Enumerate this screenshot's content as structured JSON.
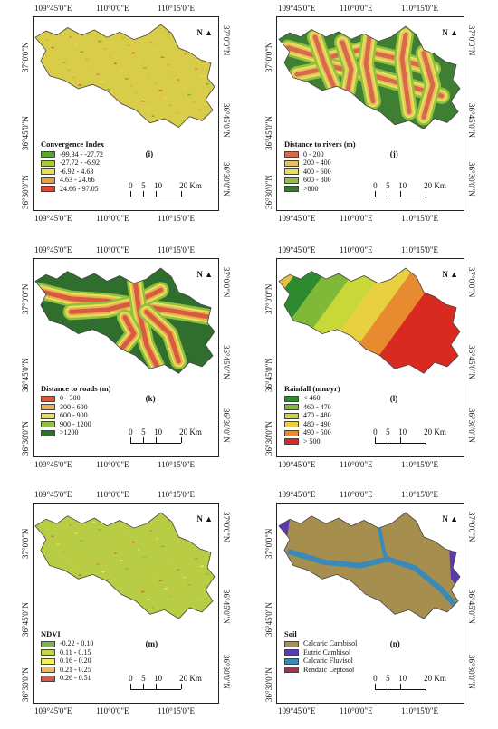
{
  "panels": [
    {
      "id": "i",
      "label": "(i)",
      "lon_ticks_top": [
        "109°45'0\"E",
        "110°0'0\"E",
        "110°15'0\"E"
      ],
      "lon_ticks_bottom": [
        "109°45'0\"E",
        "110°0'0\"E",
        "110°15'0\"E"
      ],
      "lat_ticks": [
        "37°0'0\"N",
        "36°45'0\"N",
        "36°30'0\"N"
      ],
      "legend": {
        "title": "Convergence Index",
        "items": [
          {
            "label": "-99.34 - -27.72",
            "color": "#5aa832"
          },
          {
            "label": "-27.72 - -6.92",
            "color": "#a8c83c"
          },
          {
            "label": "-6.92 - 4.63",
            "color": "#e8e050"
          },
          {
            "label": "4.63 - 24.66",
            "color": "#e8a040"
          },
          {
            "label": "24.66 - 97.05",
            "color": "#d84a3a"
          }
        ]
      },
      "map_fill": "#d8cc48",
      "scale": {
        "labels": [
          "0",
          "5",
          "10",
          "20 Km"
        ]
      },
      "north": "N"
    },
    {
      "id": "j",
      "label": "(j)",
      "lon_ticks_top": [
        "109°45'0\"E",
        "110°0'0\"E",
        "110°15'0\"E"
      ],
      "lon_ticks_bottom": [
        "109°45'0\"E",
        "110°0'0\"E",
        "110°15'0\"E"
      ],
      "lat_ticks": [
        "37°0'0\"N",
        "36°45'0\"N",
        "36°30'0\"N"
      ],
      "legend": {
        "title": "Distance to rivers (m)",
        "items": [
          {
            "label": "0 - 200",
            "color": "#d86a4a"
          },
          {
            "label": "200 - 400",
            "color": "#e8c060"
          },
          {
            "label": "400 - 600",
            "color": "#e8e058"
          },
          {
            "label": "600 - 800",
            "color": "#90c040"
          },
          {
            "label": ">800",
            "color": "#3a7a30"
          }
        ]
      },
      "map_fill": "#3f7f34",
      "scale": {
        "labels": [
          "0",
          "5",
          "10",
          "20 Km"
        ]
      },
      "north": "N"
    },
    {
      "id": "k",
      "label": "(k)",
      "lon_ticks_top": [
        "109°45'0\"E",
        "110°0'0\"E",
        "110°15'0\"E"
      ],
      "lon_ticks_bottom": [
        "109°45'0\"E",
        "110°0'0\"E",
        "110°15'0\"E"
      ],
      "lat_ticks": [
        "37°0'0\"N",
        "36°45'0\"N",
        "36°30'0\"N"
      ],
      "legend": {
        "title": "Distance to roads (m)",
        "items": [
          {
            "label": "0 - 300",
            "color": "#d85a40"
          },
          {
            "label": "300 - 600",
            "color": "#e8b050"
          },
          {
            "label": "600 - 900",
            "color": "#e8e058"
          },
          {
            "label": "900 - 1200",
            "color": "#90c040"
          },
          {
            "label": ">1200",
            "color": "#2f6e2c"
          }
        ]
      },
      "map_fill": "#2f6e2c",
      "scale": {
        "labels": [
          "0",
          "5",
          "10",
          "20 Km"
        ]
      },
      "north": "N"
    },
    {
      "id": "l",
      "label": "(l)",
      "lon_ticks_top": [
        "109°45'0\"E",
        "110°0'0\"E",
        "110°15'0\"E"
      ],
      "lon_ticks_bottom": [
        "109°45'0\"E",
        "110°0'0\"E",
        "110°15'0\"E"
      ],
      "lat_ticks": [
        "37°0'0\"N",
        "36°45'0\"N",
        "36°30'0\"N"
      ],
      "legend": {
        "title": "Rainfall (mm/yr)",
        "items": [
          {
            "label": "< 460",
            "color": "#2e8a2e"
          },
          {
            "label": "460 - 470",
            "color": "#80b838"
          },
          {
            "label": "470 - 480",
            "color": "#c8d838"
          },
          {
            "label": "480 - 490",
            "color": "#e8d040"
          },
          {
            "label": "490 - 500",
            "color": "#e88a30"
          },
          {
            "label": "> 500",
            "color": "#d82a20"
          }
        ]
      },
      "map_fill": "#e8c040",
      "scale": {
        "labels": [
          "0",
          "5",
          "10",
          "20 Km"
        ]
      },
      "north": "N"
    },
    {
      "id": "m",
      "label": "(m)",
      "lon_ticks_top": [
        "109°45'0\"E",
        "110°0'0\"E",
        "110°15'0\"E"
      ],
      "lon_ticks_bottom": [
        "109°45'0\"E",
        "110°0'0\"E",
        "110°15'0\"E"
      ],
      "lat_ticks": [
        "37°0'0\"N",
        "36°45'0\"N",
        "36°30'0\"N"
      ],
      "legend": {
        "title": "NDVI",
        "items": [
          {
            "label": "-0.22 - 0.10",
            "color": "#78b848"
          },
          {
            "label": "0.11 - 0.15",
            "color": "#c0d848"
          },
          {
            "label": "0.16 - 0.20",
            "color": "#f0f060"
          },
          {
            "label": "0.21 - 0.25",
            "color": "#f0b858"
          },
          {
            "label": "0.26 - 0.51",
            "color": "#d85a48"
          }
        ]
      },
      "map_fill": "#b8cc44",
      "scale": {
        "labels": [
          "0",
          "5",
          "10",
          "20 Km"
        ]
      },
      "north": "N"
    },
    {
      "id": "n",
      "label": "(n)",
      "lon_ticks_top": [
        "109°45'0\"E",
        "110°0'0\"E",
        "110°15'0\"E"
      ],
      "lon_ticks_bottom": [
        "109°45'0\"E",
        "110°0'0\"E",
        "110°15'0\"E"
      ],
      "lat_ticks": [
        "37°0'0\"N",
        "36°45'0\"N",
        "36°30'0\"N"
      ],
      "legend": {
        "title": "Soil",
        "items": [
          {
            "label": "Calcaric Cambisol",
            "color": "#a89050"
          },
          {
            "label": "Eutric Cambisol",
            "color": "#5a3ab0"
          },
          {
            "label": "Calcaric Fluvisol",
            "color": "#3a8ab8"
          },
          {
            "label": "Rendzic Leptosol",
            "color": "#a8324a"
          }
        ]
      },
      "map_fill": "#a68e4e",
      "scale": {
        "labels": [
          "0",
          "5",
          "10",
          "20 Km"
        ]
      },
      "north": "N"
    }
  ]
}
